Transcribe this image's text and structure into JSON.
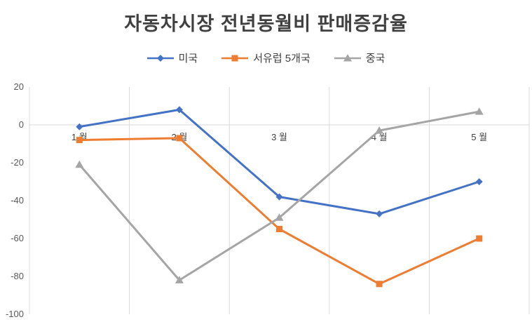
{
  "chart_data": {
    "type": "line",
    "title": "자동차시장 전년동월비 판매증감율",
    "categories": [
      "1 월",
      "2 월",
      "3 월",
      "4 월",
      "5 월"
    ],
    "series": [
      {
        "name": "미국",
        "marker": "diamond",
        "color": "#4472C4",
        "values": [
          -1,
          8,
          -38,
          -47,
          -30
        ]
      },
      {
        "name": "서유럽 5개국",
        "marker": "square",
        "color": "#ED7D31",
        "values": [
          -8,
          -7,
          -55,
          -84,
          -60
        ]
      },
      {
        "name": "중국",
        "marker": "triangle",
        "color": "#A5A5A5",
        "values": [
          -21,
          -82,
          -49,
          -3,
          7
        ]
      }
    ],
    "ylim": [
      -100,
      20
    ],
    "yticks": [
      20,
      0,
      -20,
      -40,
      -60,
      -80,
      -100
    ],
    "xlabel": "",
    "ylabel": "",
    "grid": "vertical-only",
    "legend_position": "top",
    "colors": {
      "gridline": "#D9D9D9",
      "axis_line": "#D9D9D9",
      "tick_label": "#595959",
      "category_label": "#404040",
      "title": "#404040"
    }
  }
}
